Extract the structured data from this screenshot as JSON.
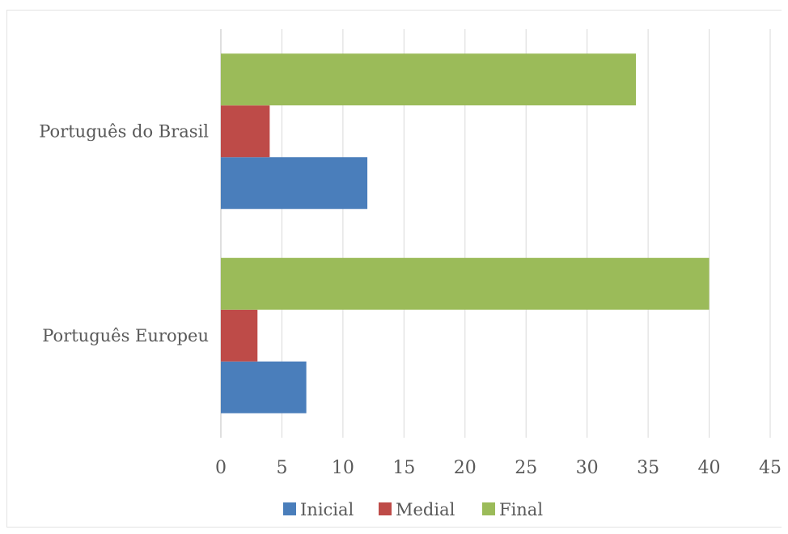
{
  "chart_data": {
    "type": "bar",
    "orientation": "horizontal",
    "categories": [
      "Português do Brasil",
      "Português Europeu"
    ],
    "series": [
      {
        "name": "Inicial",
        "color": "#4a7ebb",
        "values": [
          12,
          7
        ]
      },
      {
        "name": "Medial",
        "color": "#be4b48",
        "values": [
          4,
          3
        ]
      },
      {
        "name": "Final",
        "color": "#9bbb59",
        "values": [
          34,
          40
        ]
      }
    ],
    "x_ticks": [
      "0",
      "5",
      "10",
      "15",
      "20",
      "25",
      "30",
      "35",
      "40",
      "45"
    ],
    "xlim": [
      0,
      45
    ],
    "grid": "vertical",
    "legend_position": "bottom"
  }
}
